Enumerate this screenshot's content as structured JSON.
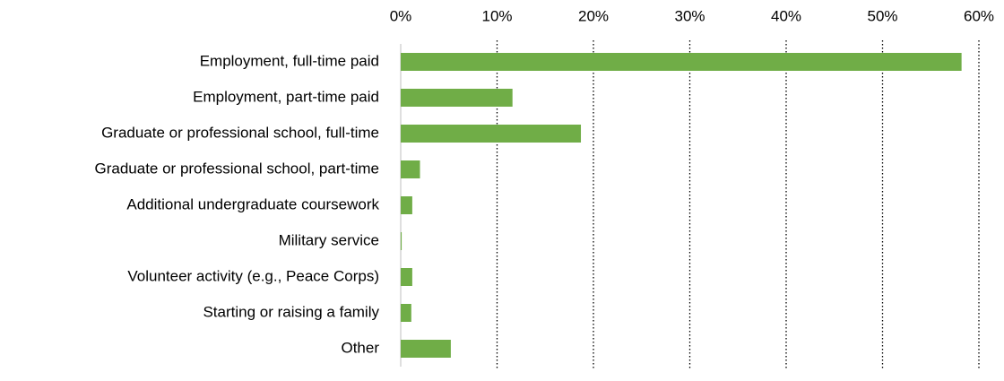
{
  "chart_data": {
    "type": "bar",
    "orientation": "horizontal",
    "categories": [
      "Employment, full-time paid",
      "Employment, part-time paid",
      "Graduate or professional school, full-time",
      "Graduate or professional school, part-time",
      "Additional undergraduate coursework",
      "Military service",
      "Volunteer activity (e.g., Peace Corps)",
      "Starting or raising a family",
      "Other"
    ],
    "values": [
      58.2,
      11.6,
      18.7,
      2.0,
      1.2,
      0.1,
      1.2,
      1.1,
      5.2
    ],
    "color": "#70ad47",
    "xlim": [
      0,
      60
    ],
    "xticks": [
      {
        "value": 0,
        "label": "0%"
      },
      {
        "value": 10,
        "label": "10%"
      },
      {
        "value": 20,
        "label": "20%"
      },
      {
        "value": 30,
        "label": "30%"
      },
      {
        "value": 40,
        "label": "40%"
      },
      {
        "value": 50,
        "label": "50%"
      },
      {
        "value": 60,
        "label": "60%"
      }
    ],
    "grid": true
  }
}
